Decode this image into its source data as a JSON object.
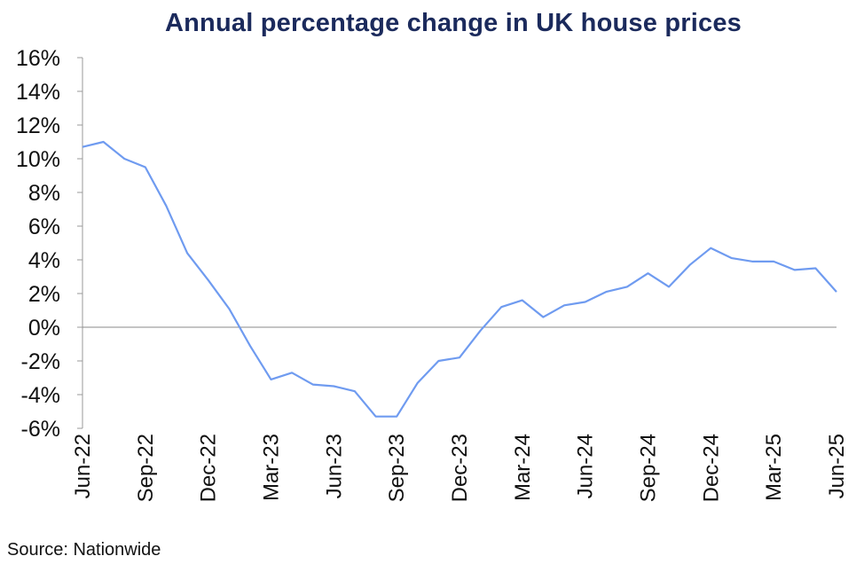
{
  "chart_data": {
    "type": "line",
    "title": "Annual percentage change in UK house prices",
    "xlabel": "",
    "ylabel": "",
    "ylim": [
      -6,
      16
    ],
    "y_ticks": [
      16,
      14,
      12,
      10,
      8,
      6,
      4,
      2,
      0,
      -2,
      -4,
      -6
    ],
    "y_tick_labels": [
      "16%",
      "14%",
      "12%",
      "10%",
      "8%",
      "6%",
      "4%",
      "2%",
      "0%",
      "-2%",
      "-4%",
      "-6%"
    ],
    "x_tick_labels": [
      "Jun-22",
      "Sep-22",
      "Dec-22",
      "Mar-23",
      "Jun-23",
      "Sep-23",
      "Dec-23",
      "Mar-24",
      "Jun-24",
      "Sep-24",
      "Dec-24",
      "Mar-25",
      "Jun-25"
    ],
    "x": [
      "Jun-22",
      "Jul-22",
      "Aug-22",
      "Sep-22",
      "Oct-22",
      "Nov-22",
      "Dec-22",
      "Jan-23",
      "Feb-23",
      "Mar-23",
      "Apr-23",
      "May-23",
      "Jun-23",
      "Jul-23",
      "Aug-23",
      "Sep-23",
      "Oct-23",
      "Nov-23",
      "Dec-23",
      "Jan-24",
      "Feb-24",
      "Mar-24",
      "Apr-24",
      "May-24",
      "Jun-24",
      "Jul-24",
      "Aug-24",
      "Sep-24",
      "Oct-24",
      "Nov-24",
      "Dec-24",
      "Jan-25",
      "Feb-25",
      "Mar-25",
      "Apr-25",
      "May-25",
      "Jun-25"
    ],
    "series": [
      {
        "values": [
          10.7,
          11.0,
          10.0,
          9.5,
          7.2,
          4.4,
          2.8,
          1.1,
          -1.1,
          -3.1,
          -2.7,
          -3.4,
          -3.5,
          -3.8,
          -5.3,
          -5.3,
          -3.3,
          -2.0,
          -1.8,
          -0.2,
          1.2,
          1.6,
          0.6,
          1.3,
          1.5,
          2.1,
          2.4,
          3.2,
          2.4,
          3.7,
          4.7,
          4.1,
          3.9,
          3.9,
          3.4,
          3.5,
          2.1
        ]
      }
    ],
    "line_color": "#6f9bf0",
    "zero_line_color": "#888888",
    "grid": false,
    "legend": "none"
  },
  "source": "Source: Nationwide"
}
